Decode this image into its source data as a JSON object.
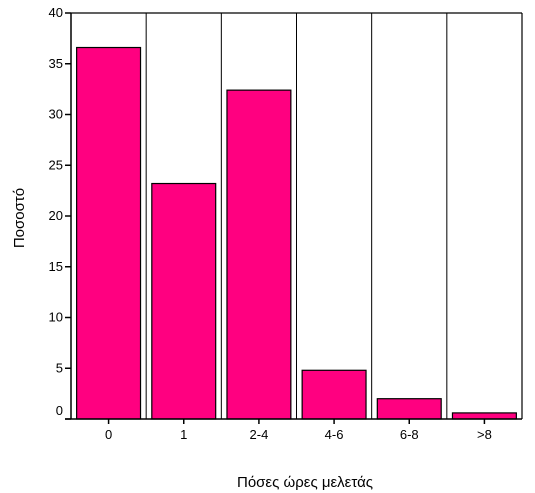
{
  "chart_data": {
    "type": "bar",
    "title": "",
    "xlabel": "Πόσες ώρες μελετάς",
    "ylabel": "Ποσοστό",
    "categories": [
      "0",
      "1",
      "2-4",
      "4-6",
      "6-8",
      ">8"
    ],
    "values": [
      36.6,
      23.2,
      32.4,
      4.8,
      2.0,
      0.6
    ],
    "ylim": [
      0,
      40
    ],
    "yticks": [
      "0",
      "5",
      "10",
      "15",
      "20",
      "25",
      "30",
      "35",
      "40"
    ],
    "bar_color": "#ff0080",
    "bar_border_color": "#000000",
    "grid": "vertical separators between categories",
    "legend": "none"
  }
}
